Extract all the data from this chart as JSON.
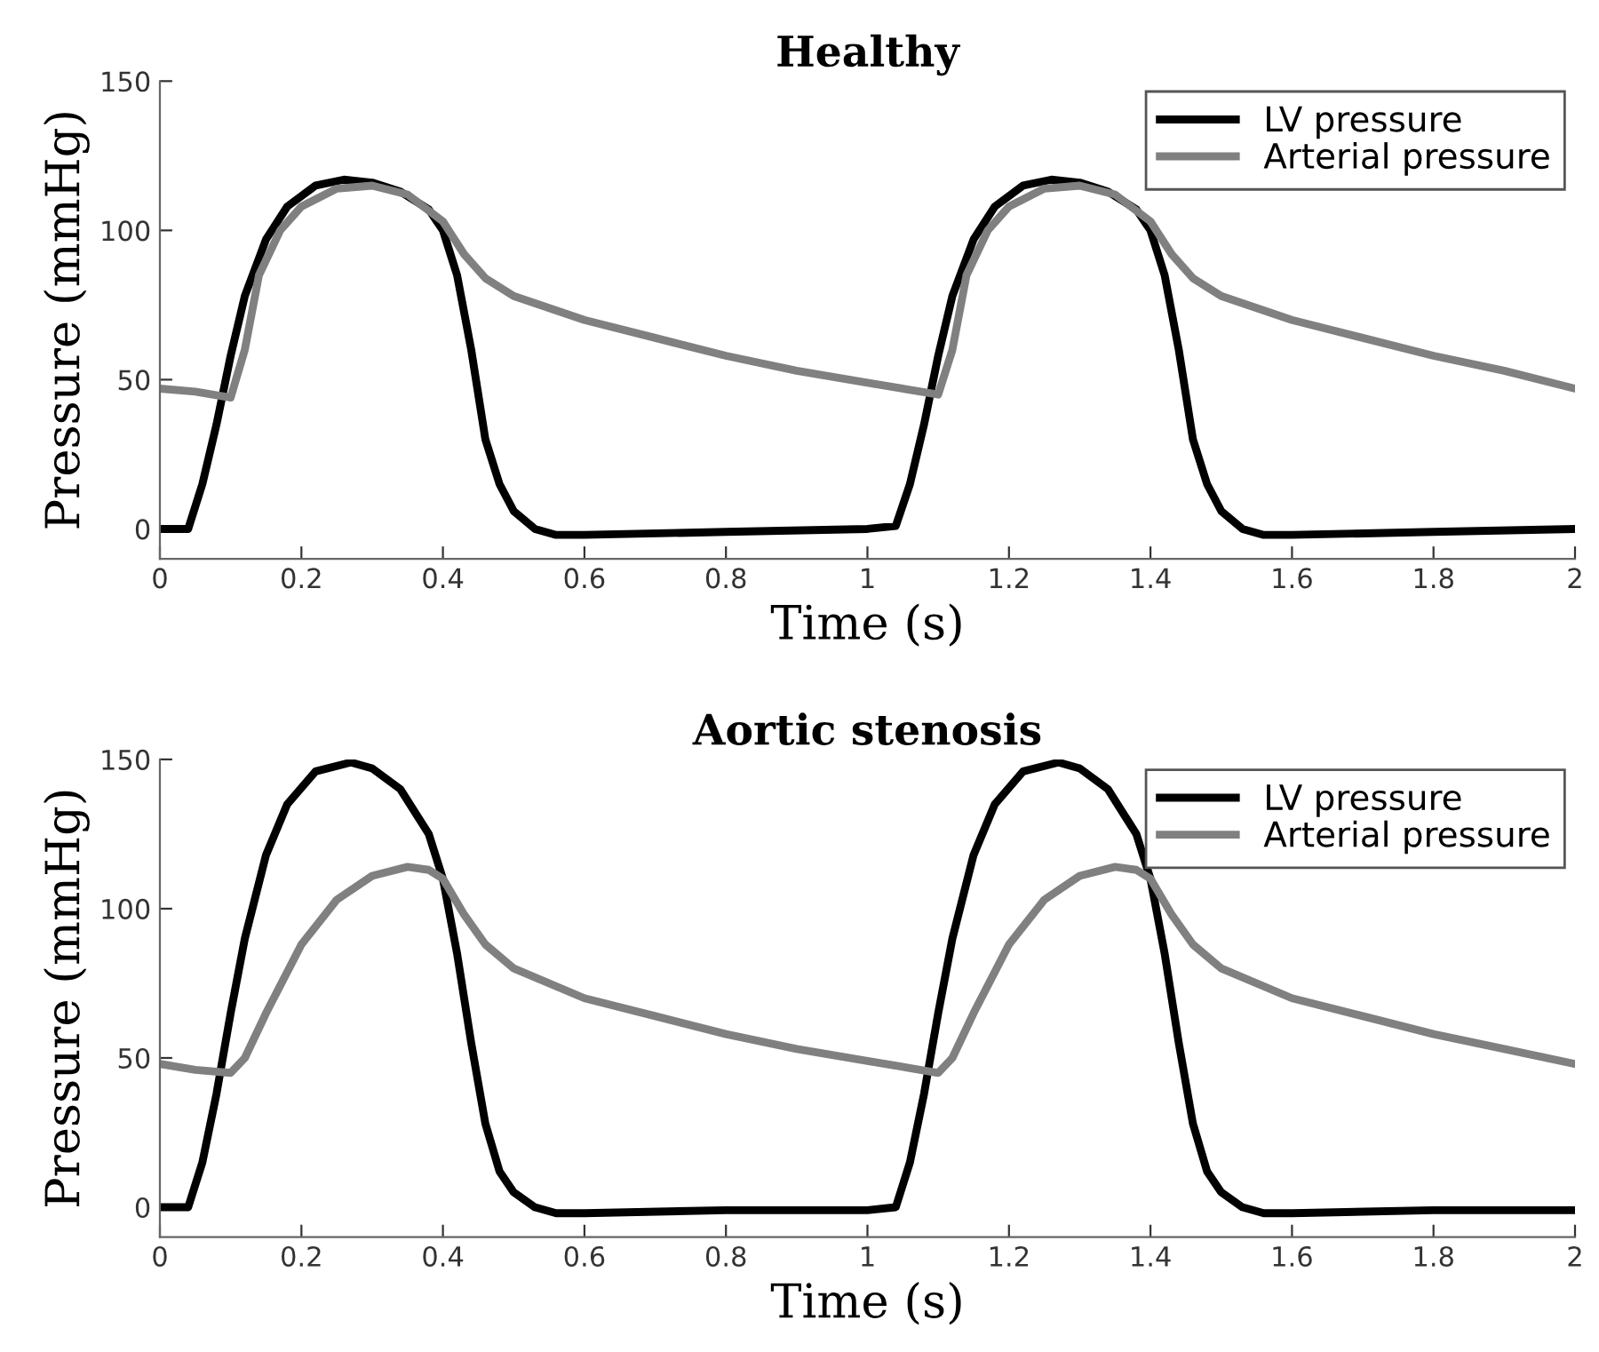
{
  "chart_data": [
    {
      "type": "line",
      "title": "Healthy",
      "xlabel": "Time (s)",
      "ylabel": "Pressure (mmHg)",
      "xlim": [
        0,
        2
      ],
      "ylim": [
        -10,
        150
      ],
      "xticks": [
        0,
        0.2,
        0.4,
        0.6,
        0.8,
        1,
        1.2,
        1.4,
        1.6,
        1.8,
        2
      ],
      "yticks": [
        0,
        50,
        100,
        150
      ],
      "grid": false,
      "legend": "top right",
      "line_style": "solid",
      "marker": "none",
      "series": [
        {
          "name": "LV pressure",
          "color": "#000000",
          "x": [
            0,
            0.04,
            0.06,
            0.08,
            0.1,
            0.12,
            0.15,
            0.18,
            0.22,
            0.26,
            0.3,
            0.34,
            0.38,
            0.4,
            0.42,
            0.44,
            0.46,
            0.48,
            0.5,
            0.53,
            0.56,
            0.6,
            0.8,
            1.0,
            1.04,
            1.06,
            1.08,
            1.1,
            1.12,
            1.15,
            1.18,
            1.22,
            1.26,
            1.3,
            1.34,
            1.38,
            1.4,
            1.42,
            1.44,
            1.46,
            1.48,
            1.5,
            1.53,
            1.56,
            1.6,
            1.8,
            2.0
          ],
          "values": [
            0,
            0,
            15,
            35,
            58,
            78,
            97,
            108,
            115,
            117,
            116,
            113,
            107,
            100,
            85,
            60,
            30,
            15,
            6,
            0,
            -2,
            -2,
            -1,
            0,
            1,
            15,
            35,
            58,
            78,
            97,
            108,
            115,
            117,
            116,
            113,
            107,
            100,
            85,
            60,
            30,
            15,
            6,
            0,
            -2,
            -2,
            -1,
            0
          ]
        },
        {
          "name": "Arterial pressure",
          "color": "#808080",
          "x": [
            0,
            0.05,
            0.1,
            0.12,
            0.14,
            0.17,
            0.2,
            0.25,
            0.3,
            0.35,
            0.4,
            0.43,
            0.46,
            0.5,
            0.6,
            0.7,
            0.8,
            0.9,
            1.0,
            1.1,
            1.12,
            1.14,
            1.17,
            1.2,
            1.25,
            1.3,
            1.35,
            1.4,
            1.43,
            1.46,
            1.5,
            1.6,
            1.7,
            1.8,
            1.9,
            2.0
          ],
          "values": [
            47,
            46,
            44,
            60,
            85,
            100,
            108,
            114,
            115,
            112,
            103,
            92,
            84,
            78,
            70,
            64,
            58,
            53,
            49,
            45,
            60,
            85,
            100,
            108,
            114,
            115,
            112,
            103,
            92,
            84,
            78,
            70,
            64,
            58,
            53,
            47
          ]
        }
      ]
    },
    {
      "type": "line",
      "title": "Aortic stenosis",
      "xlabel": "Time (s)",
      "ylabel": "Pressure (mmHg)",
      "xlim": [
        0,
        2
      ],
      "ylim": [
        -10,
        150
      ],
      "xticks": [
        0,
        0.2,
        0.4,
        0.6,
        0.8,
        1,
        1.2,
        1.4,
        1.6,
        1.8,
        2
      ],
      "yticks": [
        0,
        50,
        100,
        150
      ],
      "grid": false,
      "legend": "top right",
      "line_style": "solid",
      "marker": "none",
      "series": [
        {
          "name": "LV pressure",
          "color": "#000000",
          "x": [
            0,
            0.04,
            0.06,
            0.08,
            0.1,
            0.12,
            0.15,
            0.18,
            0.22,
            0.27,
            0.3,
            0.34,
            0.38,
            0.4,
            0.42,
            0.44,
            0.46,
            0.48,
            0.5,
            0.53,
            0.56,
            0.6,
            0.8,
            1.0,
            1.04,
            1.06,
            1.08,
            1.1,
            1.12,
            1.15,
            1.18,
            1.22,
            1.27,
            1.3,
            1.34,
            1.38,
            1.4,
            1.42,
            1.44,
            1.46,
            1.48,
            1.5,
            1.53,
            1.56,
            1.6,
            1.8,
            2.0
          ],
          "values": [
            0,
            0,
            15,
            38,
            65,
            90,
            118,
            135,
            146,
            149,
            147,
            140,
            125,
            110,
            85,
            55,
            28,
            12,
            5,
            0,
            -2,
            -2,
            -1,
            -1,
            0,
            15,
            38,
            65,
            90,
            118,
            135,
            146,
            149,
            147,
            140,
            125,
            110,
            85,
            55,
            28,
            12,
            5,
            0,
            -2,
            -2,
            -1,
            -1
          ]
        },
        {
          "name": "Arterial pressure",
          "color": "#808080",
          "x": [
            0,
            0.05,
            0.1,
            0.12,
            0.15,
            0.2,
            0.25,
            0.3,
            0.35,
            0.38,
            0.4,
            0.43,
            0.46,
            0.5,
            0.6,
            0.7,
            0.8,
            0.9,
            1.0,
            1.1,
            1.12,
            1.15,
            1.2,
            1.25,
            1.3,
            1.35,
            1.38,
            1.4,
            1.43,
            1.46,
            1.5,
            1.6,
            1.7,
            1.8,
            1.9,
            2.0
          ],
          "values": [
            48,
            46,
            45,
            50,
            65,
            88,
            103,
            111,
            114,
            113,
            110,
            98,
            88,
            80,
            70,
            64,
            58,
            53,
            49,
            45,
            50,
            65,
            88,
            103,
            111,
            114,
            113,
            110,
            98,
            88,
            80,
            70,
            64,
            58,
            53,
            48
          ]
        }
      ]
    }
  ]
}
